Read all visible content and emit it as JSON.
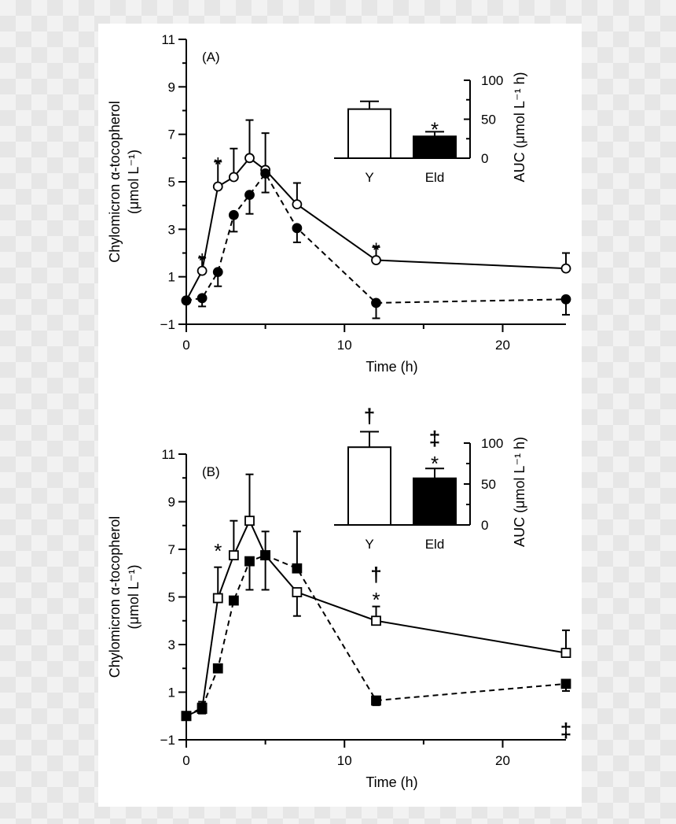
{
  "chart_data": [
    {
      "panel": "A",
      "type": "line",
      "panel_label": "(A)",
      "xlabel": "Time (h)",
      "ylabel_line1": "Chylomicron α-tocopherol",
      "ylabel_line2": "(μmol L⁻¹)",
      "xlim": [
        0,
        24
      ],
      "ylim": [
        -1,
        11
      ],
      "xticks": [
        0,
        10,
        20
      ],
      "yticks": [
        -1,
        1,
        3,
        5,
        7,
        9,
        11
      ],
      "marker": "circle",
      "series": [
        {
          "name": "Y",
          "style": "solid",
          "fill": "open",
          "x": [
            0,
            1,
            2,
            3,
            4,
            5,
            7,
            12,
            24
          ],
          "y": [
            0,
            1.25,
            4.8,
            5.2,
            6.0,
            5.5,
            4.05,
            1.7,
            1.35
          ],
          "err_up": [
            0,
            0.55,
            1.05,
            1.2,
            1.6,
            1.55,
            0.9,
            0.55,
            0.65
          ]
        },
        {
          "name": "Eld",
          "style": "dashed",
          "fill": "filled",
          "x": [
            0,
            1,
            2,
            3,
            4,
            5,
            7,
            12,
            24
          ],
          "y": [
            0,
            0.1,
            1.2,
            3.6,
            4.45,
            5.35,
            3.05,
            -0.1,
            0.05
          ],
          "err_down": [
            0,
            0.35,
            0.6,
            0.7,
            0.8,
            0.8,
            0.6,
            0.65,
            0.65
          ]
        }
      ],
      "annotations": [
        {
          "x": 1,
          "y": 1.85,
          "text": "*"
        },
        {
          "x": 2,
          "y": 5.9,
          "text": "*"
        },
        {
          "x": 12,
          "y": 2.3,
          "text": "*"
        }
      ],
      "inset": {
        "type": "bar",
        "categories": [
          "Y",
          "Eld"
        ],
        "values": [
          63,
          28
        ],
        "errors": [
          10,
          6
        ],
        "fills": [
          "#ffffff",
          "#000000"
        ],
        "ylim": [
          0,
          100
        ],
        "yticks": [
          0,
          50,
          100
        ],
        "ylabel": "AUC (μmol L⁻¹ h)",
        "bar_annotations": [
          {
            "bar": 1,
            "text": "*",
            "value": 42
          }
        ]
      }
    },
    {
      "panel": "B",
      "type": "line",
      "panel_label": "(B)",
      "xlabel": "Time (h)",
      "ylabel_line1": "Chylomicron α-tocopherol",
      "ylabel_line2": "(μmol L⁻¹)",
      "xlim": [
        0,
        24
      ],
      "ylim": [
        -1,
        11
      ],
      "xticks": [
        0,
        10,
        20
      ],
      "yticks": [
        -1,
        1,
        3,
        5,
        7,
        9,
        11
      ],
      "marker": "square",
      "series": [
        {
          "name": "Y",
          "style": "solid",
          "fill": "open",
          "x": [
            0,
            1,
            2,
            3,
            4,
            5,
            7,
            12,
            24
          ],
          "y": [
            0,
            0.3,
            4.95,
            6.75,
            8.2,
            6.75,
            5.2,
            4.0,
            2.65
          ],
          "err_up": [
            0,
            0.3,
            1.3,
            1.45,
            1.95,
            1.0,
            0,
            0.6,
            0.95
          ],
          "err_down": [
            0,
            0,
            0,
            0,
            0,
            0,
            1.0,
            0,
            0
          ]
        },
        {
          "name": "Eld",
          "style": "dashed",
          "fill": "filled",
          "x": [
            0,
            1,
            2,
            3,
            4,
            5,
            7,
            12,
            24
          ],
          "y": [
            0,
            0.35,
            2.0,
            4.85,
            6.5,
            6.75,
            6.2,
            0.65,
            1.35
          ],
          "err_up": [
            0,
            0,
            0,
            0,
            0,
            0,
            1.55,
            0,
            0
          ],
          "err_down": [
            0,
            0.25,
            0,
            0,
            1.2,
            1.45,
            0,
            0.2,
            0.3
          ]
        }
      ],
      "annotations": [
        {
          "x": 2,
          "y": 7.1,
          "text": "*"
        },
        {
          "x": 12,
          "y": 5.05,
          "text": "*"
        },
        {
          "x": 12,
          "y": 5.95,
          "text": "†"
        },
        {
          "x": 24,
          "y": -0.6,
          "text": "‡"
        }
      ],
      "inset": {
        "type": "bar",
        "categories": [
          "Y",
          "Eld"
        ],
        "values": [
          95,
          57
        ],
        "errors": [
          19,
          12
        ],
        "fills": [
          "#ffffff",
          "#000000"
        ],
        "ylim": [
          0,
          100
        ],
        "yticks": [
          0,
          50,
          100
        ],
        "ylabel": "AUC (μmol L⁻¹ h)",
        "bar_annotations": [
          {
            "bar": 0,
            "text": "†",
            "value": 133
          },
          {
            "bar": 1,
            "text": "*",
            "value": 80
          },
          {
            "bar": 1,
            "text": "‡",
            "value": 106
          }
        ]
      }
    }
  ]
}
